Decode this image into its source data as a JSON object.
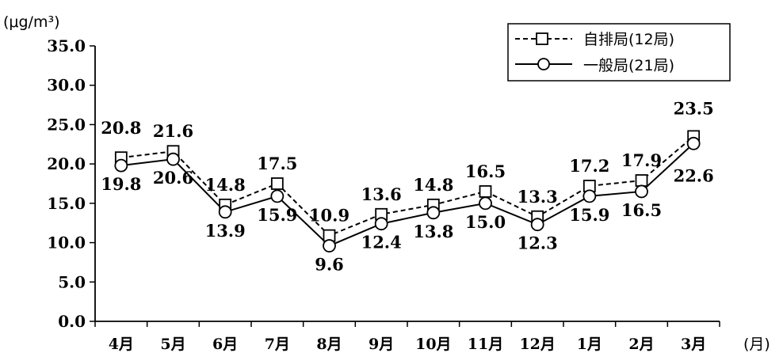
{
  "chart_data": {
    "type": "line",
    "y_unit": "(μg/m³)",
    "x_unit": "(月)",
    "categories": [
      "4月",
      "5月",
      "6月",
      "7月",
      "8月",
      "9月",
      "10月",
      "11月",
      "12月",
      "1月",
      "2月",
      "3月"
    ],
    "ylim": [
      0,
      35
    ],
    "yticks": [
      "0.0",
      "5.0",
      "10.0",
      "15.0",
      "20.0",
      "25.0",
      "30.0",
      "35.0"
    ],
    "series": [
      {
        "name": "自排局(12局)",
        "values": [
          20.8,
          21.6,
          14.8,
          17.5,
          10.9,
          13.6,
          14.8,
          16.5,
          13.3,
          17.2,
          17.9,
          23.5
        ],
        "labels": [
          "20.8",
          "21.6",
          "14.8",
          "17.5",
          "10.9",
          "13.6",
          "14.8",
          "16.5",
          "13.3",
          "17.2",
          "17.9",
          "23.5"
        ],
        "marker": "square",
        "line": "dashed",
        "label_position": "above"
      },
      {
        "name": "一般局(21局)",
        "values": [
          19.8,
          20.6,
          13.9,
          15.9,
          9.6,
          12.4,
          13.8,
          15.0,
          12.3,
          15.9,
          16.5,
          22.6
        ],
        "labels": [
          "19.8",
          "20.6",
          "13.9",
          "15.9",
          "9.6",
          "12.4",
          "13.8",
          "15.0",
          "12.3",
          "15.9",
          "16.5",
          "22.6"
        ],
        "marker": "circle",
        "line": "solid",
        "label_position": "below"
      }
    ],
    "legend_position": "top-right",
    "grid": false
  }
}
